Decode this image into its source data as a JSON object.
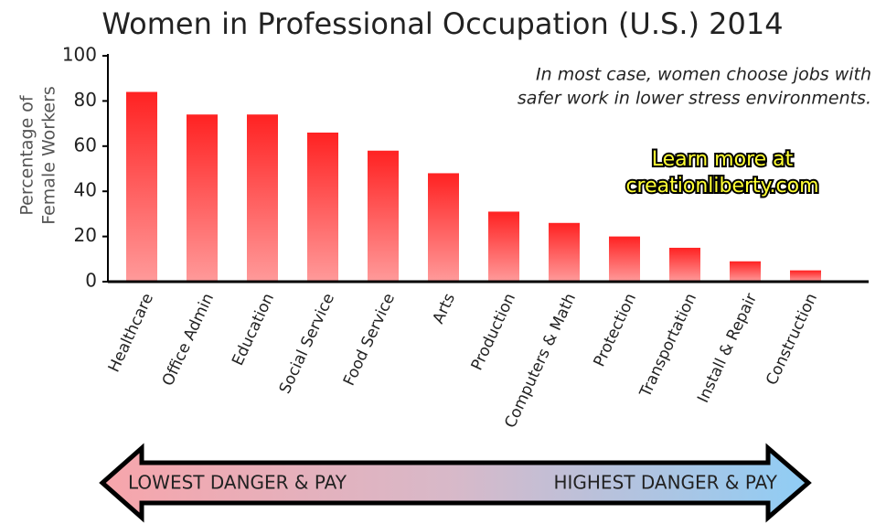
{
  "chart_data": {
    "type": "bar",
    "title": "Women in Professional Occupation (U.S.) 2014",
    "y_label": [
      "Percentage of",
      "Female Workers"
    ],
    "annotation": [
      "In most case, women choose jobs with",
      "safer work in lower stress environments."
    ],
    "promo": [
      "Learn more at",
      "creationliberty.com"
    ],
    "arrow_left_label": "LOWEST DANGER & PAY",
    "arrow_right_label": "HIGHEST DANGER & PAY",
    "categories": [
      "Healthcare",
      "Office Admin",
      "Education",
      "Social Service",
      "Food Service",
      "Arts",
      "Production",
      "Computers & Math",
      "Protection",
      "Transportation",
      "Install & Repair",
      "Construction"
    ],
    "values": [
      84,
      74,
      74,
      66,
      58,
      48,
      31,
      26,
      20,
      15,
      9,
      5
    ],
    "color": [
      "#ff2222",
      "#ff9a9a"
    ],
    "ylim": [
      0,
      100
    ],
    "yticks": [
      0,
      20,
      40,
      60,
      80,
      100
    ],
    "grid": false
  }
}
